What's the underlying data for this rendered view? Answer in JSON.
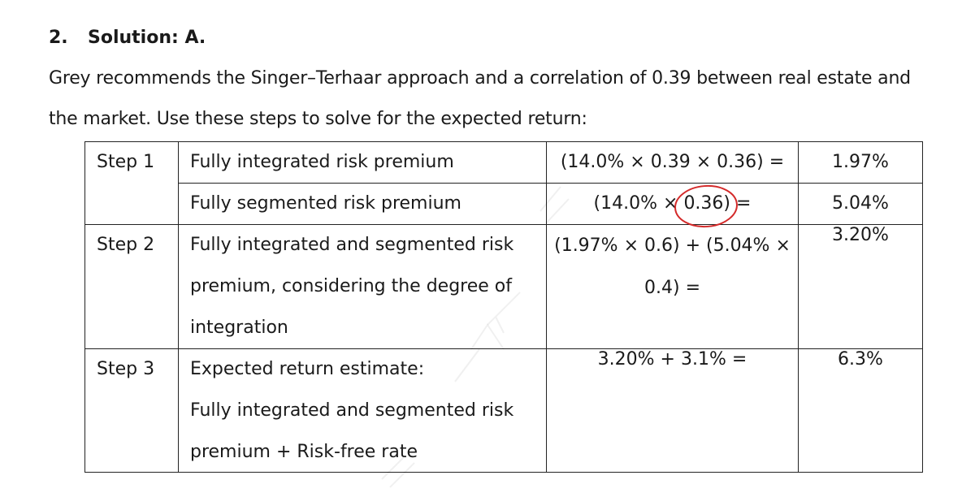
{
  "heading": {
    "number": "2.",
    "title": "Solution: A."
  },
  "intro": {
    "line1": "Grey recommends the Singer–Terhaar approach and a correlation of 0.39 between real estate and",
    "line2": "the market. Use these steps to solve for the expected return:"
  },
  "table": {
    "rows": [
      {
        "step": "Step 1",
        "description": [
          "Fully integrated risk premium"
        ],
        "calculation": [
          "(14.0% × 0.39 × 0.36) ="
        ],
        "result": "1.97%"
      },
      {
        "step": "",
        "description": [
          "Fully segmented risk premium"
        ],
        "calculation": [
          "(14.0% × 0.36) ="
        ],
        "result": "5.04%"
      },
      {
        "step": "Step 2",
        "description": [
          "Fully integrated and segmented risk",
          "premium, considering the degree of",
          "integration"
        ],
        "calculation": [
          "(1.97% × 0.6) + (5.04% ×",
          "0.4) ="
        ],
        "result": "3.20%"
      },
      {
        "step": "Step 3",
        "description": [
          "Expected return estimate:",
          "Fully integrated and segmented risk",
          "premium + Risk-free rate"
        ],
        "calculation": [
          "3.20% + 3.1% ="
        ],
        "result": "6.3%"
      }
    ]
  },
  "annotation": {
    "color": "#d42a2a",
    "circled_value": "0.36"
  }
}
